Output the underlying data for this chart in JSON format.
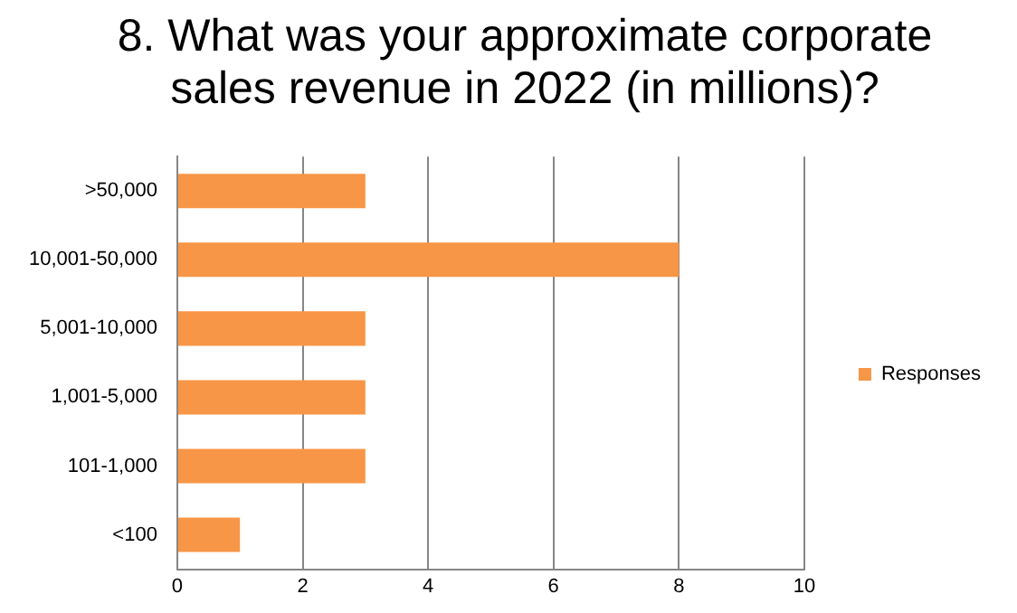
{
  "chart_data": {
    "type": "bar",
    "orientation": "horizontal",
    "title": "8. What was your approximate corporate sales revenue in 2022 (in millions)?",
    "categories": [
      ">50,000",
      "10,001-50,000",
      "5,001-10,000",
      "1,001-5,000",
      "101-1,000",
      "<100"
    ],
    "series": [
      {
        "name": "Responses",
        "color": "#f79646",
        "values": [
          3,
          8,
          3,
          3,
          3,
          1
        ]
      }
    ],
    "xlim": [
      0,
      10
    ],
    "xticks": [
      0,
      2,
      4,
      6,
      8,
      10
    ],
    "grid": "x",
    "legend": "right"
  }
}
